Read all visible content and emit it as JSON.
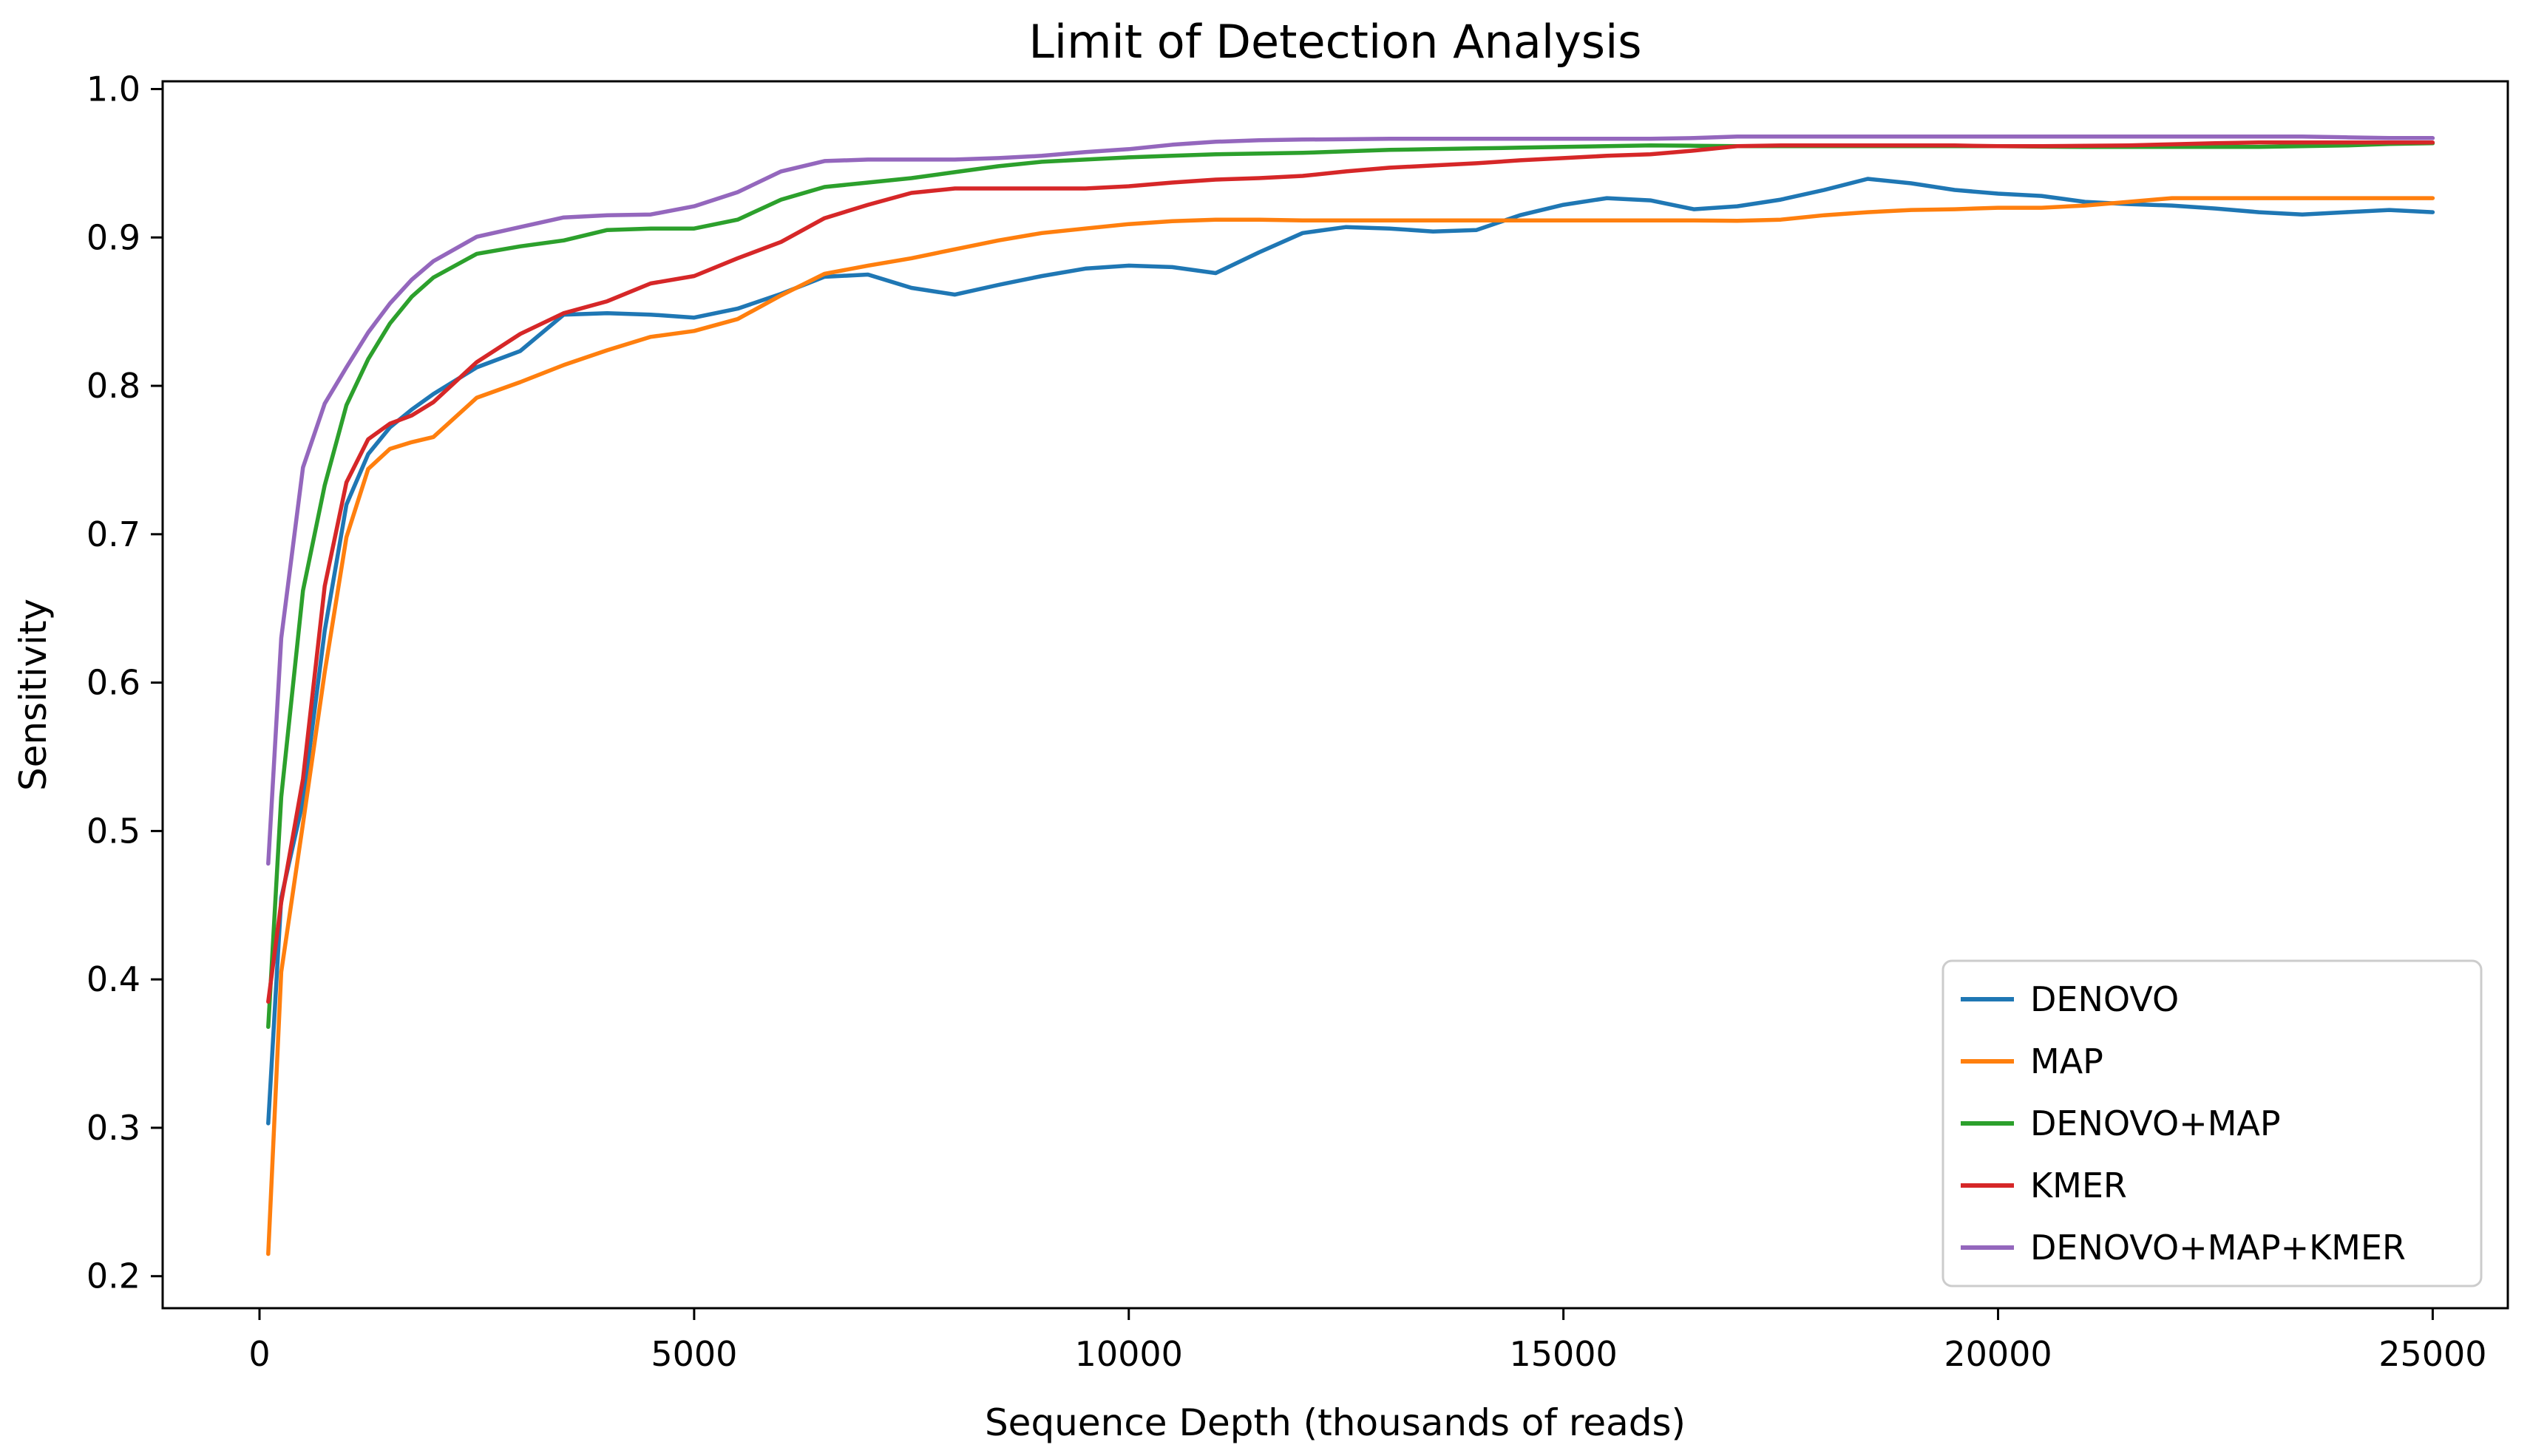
{
  "figure": {
    "background": "#ffffff",
    "spine_color": "#000000",
    "legend_border_color": "#cccccc",
    "legend_background": "#ffffff"
  },
  "chart_data": {
    "type": "line",
    "title": "Limit of Detection Analysis",
    "xlabel": "Sequence Depth (thousands of reads)",
    "ylabel": "Sensitivity",
    "grid": false,
    "legend_position": "lower right",
    "xlim": [
      -1114,
      25830
    ],
    "ylim": [
      0.178,
      1.005
    ],
    "x_ticks": [
      0,
      5000,
      10000,
      15000,
      20000,
      25000
    ],
    "y_ticks": [
      0.2,
      0.3,
      0.4,
      0.5,
      0.6,
      0.7,
      0.8,
      0.9,
      1.0
    ],
    "x": [
      100,
      250,
      500,
      750,
      1000,
      1250,
      1500,
      1750,
      2000,
      2500,
      3000,
      3500,
      4000,
      4500,
      5000,
      5500,
      6000,
      6500,
      7000,
      7500,
      8000,
      8500,
      9000,
      9500,
      10000,
      10500,
      11000,
      11500,
      12000,
      12500,
      13000,
      13500,
      14000,
      14500,
      15000,
      15500,
      16000,
      16500,
      17000,
      17500,
      18000,
      18500,
      19000,
      19500,
      20000,
      20500,
      21000,
      21500,
      22000,
      22500,
      23000,
      23500,
      24000,
      24500,
      25000
    ],
    "series": [
      {
        "name": "DENOVO",
        "color": "#1f77b4",
        "values": [
          0.303,
          0.455,
          0.52,
          0.635,
          0.72,
          0.754,
          0.772,
          0.784,
          0.7945,
          0.8125,
          0.8235,
          0.848,
          0.849,
          0.848,
          0.846,
          0.852,
          0.862,
          0.8735,
          0.875,
          0.866,
          0.8615,
          0.868,
          0.874,
          0.879,
          0.881,
          0.88,
          0.876,
          0.89,
          0.903,
          0.907,
          0.906,
          0.904,
          0.905,
          0.915,
          0.922,
          0.9265,
          0.925,
          0.919,
          0.921,
          0.9255,
          0.932,
          0.9395,
          0.9365,
          0.932,
          0.9295,
          0.928,
          0.924,
          0.9225,
          0.9215,
          0.9195,
          0.917,
          0.9155,
          0.917,
          0.9185,
          0.917
        ]
      },
      {
        "name": "MAP",
        "color": "#ff7f0e",
        "values": [
          0.215,
          0.405,
          0.505,
          0.607,
          0.698,
          0.744,
          0.7575,
          0.762,
          0.7655,
          0.792,
          0.8025,
          0.814,
          0.824,
          0.833,
          0.837,
          0.845,
          0.861,
          0.8755,
          0.881,
          0.886,
          0.892,
          0.898,
          0.903,
          0.906,
          0.909,
          0.911,
          0.912,
          0.912,
          0.9115,
          0.9115,
          0.9115,
          0.9115,
          0.9115,
          0.9115,
          0.9115,
          0.9115,
          0.9115,
          0.9115,
          0.9112,
          0.912,
          0.915,
          0.917,
          0.9185,
          0.919,
          0.92,
          0.92,
          0.9215,
          0.924,
          0.9265,
          0.9265,
          0.9265,
          0.9265,
          0.9265,
          0.9265,
          0.9265
        ]
      },
      {
        "name": "DENOVO+MAP",
        "color": "#2ca02c",
        "values": [
          0.368,
          0.523,
          0.662,
          0.733,
          0.787,
          0.818,
          0.842,
          0.86,
          0.873,
          0.889,
          0.894,
          0.898,
          0.905,
          0.906,
          0.906,
          0.912,
          0.9255,
          0.934,
          0.937,
          0.94,
          0.944,
          0.948,
          0.951,
          0.9525,
          0.954,
          0.955,
          0.956,
          0.9565,
          0.957,
          0.958,
          0.959,
          0.9595,
          0.96,
          0.9605,
          0.961,
          0.9615,
          0.962,
          0.9618,
          0.9615,
          0.9615,
          0.9615,
          0.9615,
          0.9615,
          0.9615,
          0.9615,
          0.9612,
          0.961,
          0.961,
          0.961,
          0.961,
          0.961,
          0.9615,
          0.962,
          0.963,
          0.9635
        ]
      },
      {
        "name": "KMER",
        "color": "#d62728",
        "values": [
          0.385,
          0.452,
          0.535,
          0.665,
          0.735,
          0.764,
          0.7745,
          0.78,
          0.789,
          0.816,
          0.835,
          0.849,
          0.857,
          0.869,
          0.874,
          0.886,
          0.897,
          0.913,
          0.922,
          0.93,
          0.933,
          0.933,
          0.933,
          0.933,
          0.9345,
          0.937,
          0.939,
          0.94,
          0.9415,
          0.9445,
          0.947,
          0.9485,
          0.95,
          0.952,
          0.9535,
          0.955,
          0.956,
          0.9585,
          0.9615,
          0.962,
          0.962,
          0.962,
          0.962,
          0.962,
          0.9615,
          0.9615,
          0.9618,
          0.962,
          0.9628,
          0.9635,
          0.964,
          0.964,
          0.964,
          0.964,
          0.964
        ]
      },
      {
        "name": "DENOVO+MAP+KMER",
        "color": "#9467bd",
        "values": [
          0.478,
          0.63,
          0.745,
          0.788,
          0.8125,
          0.836,
          0.8555,
          0.8715,
          0.884,
          0.9005,
          0.907,
          0.9135,
          0.915,
          0.9155,
          0.921,
          0.9305,
          0.9445,
          0.9515,
          0.9525,
          0.9525,
          0.9525,
          0.9535,
          0.955,
          0.9575,
          0.9595,
          0.9625,
          0.9645,
          0.9655,
          0.966,
          0.9662,
          0.9665,
          0.9665,
          0.9665,
          0.9665,
          0.9665,
          0.9665,
          0.9665,
          0.967,
          0.968,
          0.968,
          0.968,
          0.968,
          0.968,
          0.968,
          0.968,
          0.968,
          0.968,
          0.968,
          0.968,
          0.968,
          0.968,
          0.968,
          0.9675,
          0.967,
          0.967
        ]
      }
    ]
  }
}
